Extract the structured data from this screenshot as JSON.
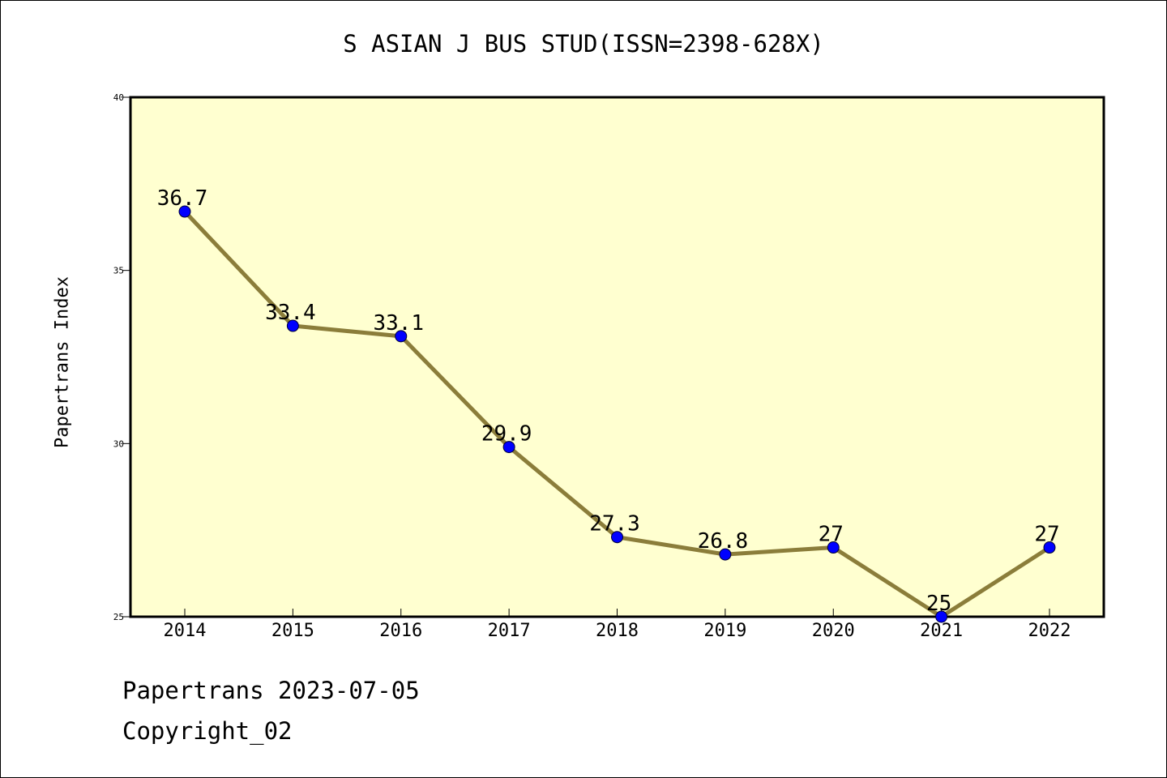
{
  "chart_data": {
    "type": "line",
    "title": "S ASIAN J BUS STUD(ISSN=2398-628X)",
    "ylabel": "Papertrans Index",
    "xlabel": "",
    "categories": [
      "2014",
      "2015",
      "2016",
      "2017",
      "2018",
      "2019",
      "2020",
      "2021",
      "2022"
    ],
    "values": [
      36.7,
      33.4,
      33.1,
      29.9,
      27.3,
      26.8,
      27,
      25,
      27
    ],
    "data_labels": [
      "36.7",
      "33.4",
      "33.1",
      "29.9",
      "27.3",
      "26.8",
      "27",
      "25",
      "27"
    ],
    "ylim": [
      25,
      40
    ],
    "yticks": [
      25,
      30,
      35,
      40
    ],
    "ytick_labels": [
      "25",
      "30",
      "35",
      "40"
    ],
    "grid": false,
    "colors": {
      "plot_background": "#ffffd0",
      "line": "#8b7d3a",
      "marker": "#0000ff"
    }
  },
  "footer": {
    "line1": "Papertrans 2023-07-05",
    "line2": "Copyright_02"
  }
}
